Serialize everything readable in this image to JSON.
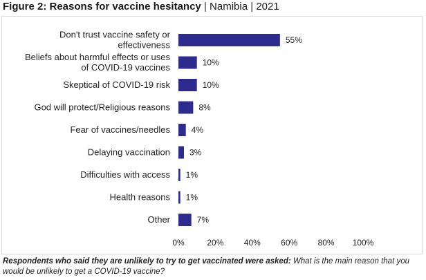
{
  "figure": {
    "label": "Figure 2: Reasons for vaccine hesitancy",
    "separator": "|",
    "country": "Namibia",
    "year": "2021"
  },
  "footnote": {
    "lead": "Respondents who said they are unlikely to try to get vaccinated were asked:",
    "question": "What is the main reason that you would be unlikely to get a COVID-19 vaccine?"
  },
  "colors": {
    "bar": "#2e2b8f"
  },
  "chart_data": {
    "type": "bar",
    "orientation": "horizontal",
    "categories": [
      [
        "Don't trust vaccine safety or",
        "effectiveness"
      ],
      [
        "Beliefs about harmful effects or uses",
        "of COVID-19 vaccines"
      ],
      [
        "Skeptical of COVID-19 risk"
      ],
      [
        "God will protect/Religious reasons"
      ],
      [
        "Fear of vaccines/needles"
      ],
      [
        "Delaying vaccination"
      ],
      [
        "Difficulties with access"
      ],
      [
        "Health reasons"
      ],
      [
        "Other"
      ]
    ],
    "values": [
      55,
      10,
      10,
      8,
      4,
      3,
      1,
      1,
      7
    ],
    "value_labels": [
      "55%",
      "10%",
      "10%",
      "8%",
      "4%",
      "3%",
      "1%",
      "1%",
      "7%"
    ],
    "x_ticks": [
      "0%",
      "20%",
      "40%",
      "60%",
      "80%",
      "100%"
    ],
    "xlim": [
      0,
      100
    ],
    "grid": false,
    "legend": "none"
  }
}
